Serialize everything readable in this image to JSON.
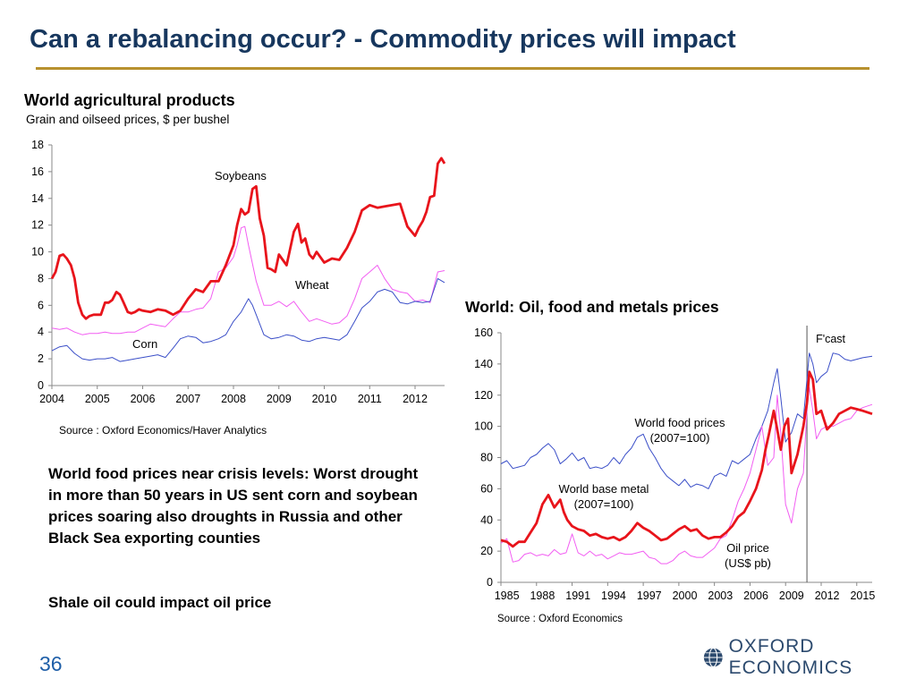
{
  "slide": {
    "title": "Can a rebalancing occur? - Commodity prices will impact",
    "page_number": "36",
    "logo_text": "OXFORD ECONOMICS",
    "paragraphs": [
      "World food prices near crisis levels: Worst drought in more than 50 years in US sent corn and soybean prices soaring also droughts in Russia and other Black Sea exporting counties",
      "Shale oil could impact oil price"
    ],
    "colors": {
      "title": "#17375e",
      "rule": "#b8912f",
      "red": "#e8141b",
      "magenta": "#f25ef2",
      "blue": "#3b4fc8"
    }
  },
  "chart_data": [
    {
      "type": "line",
      "title": "World agricultural products",
      "subtitle": "Grain and oilseed prices, $ per bushel",
      "source": "Source : Oxford Economics/Haver Analytics",
      "xlim": [
        2004,
        2012.65
      ],
      "ylim": [
        0,
        18
      ],
      "yticks": [
        0,
        2,
        4,
        6,
        8,
        10,
        12,
        14,
        16,
        18
      ],
      "xtick_labels": [
        "2004",
        "2005",
        "2006",
        "2007",
        "2008",
        "2009",
        "2010",
        "2011",
        "2012"
      ],
      "series": [
        {
          "name": "Soybeans",
          "color": "#e8141b",
          "width": 2.8,
          "x": [
            2004,
            2004.08,
            2004.17,
            2004.25,
            2004.33,
            2004.42,
            2004.5,
            2004.58,
            2004.67,
            2004.75,
            2004.83,
            2004.92,
            2005,
            2005.08,
            2005.17,
            2005.25,
            2005.33,
            2005.42,
            2005.5,
            2005.58,
            2005.67,
            2005.75,
            2005.83,
            2005.92,
            2006,
            2006.17,
            2006.33,
            2006.5,
            2006.67,
            2006.83,
            2007,
            2007.17,
            2007.33,
            2007.5,
            2007.67,
            2007.83,
            2008,
            2008.08,
            2008.17,
            2008.25,
            2008.33,
            2008.42,
            2008.5,
            2008.58,
            2008.67,
            2008.75,
            2008.83,
            2008.92,
            2009,
            2009.17,
            2009.33,
            2009.42,
            2009.5,
            2009.58,
            2009.67,
            2009.75,
            2009.83,
            2010,
            2010.17,
            2010.33,
            2010.5,
            2010.67,
            2010.83,
            2011,
            2011.17,
            2011.33,
            2011.5,
            2011.67,
            2011.83,
            2012,
            2012.08,
            2012.17,
            2012.25,
            2012.33,
            2012.42,
            2012.5,
            2012.58,
            2012.65
          ],
          "y": [
            8.0,
            8.5,
            9.7,
            9.8,
            9.5,
            9.0,
            8.0,
            6.2,
            5.3,
            5.0,
            5.2,
            5.3,
            5.3,
            5.3,
            6.2,
            6.2,
            6.4,
            7.0,
            6.8,
            6.2,
            5.5,
            5.4,
            5.5,
            5.7,
            5.6,
            5.5,
            5.7,
            5.6,
            5.3,
            5.6,
            6.5,
            7.2,
            7.0,
            7.8,
            7.8,
            9.0,
            10.5,
            12.0,
            13.2,
            12.8,
            13.0,
            14.7,
            14.9,
            12.5,
            11.2,
            8.8,
            8.7,
            8.5,
            9.8,
            9.0,
            11.5,
            12.1,
            10.7,
            11.0,
            9.8,
            9.5,
            10.0,
            9.2,
            9.5,
            9.4,
            10.3,
            11.5,
            13.1,
            13.5,
            13.3,
            13.4,
            13.5,
            13.6,
            11.9,
            11.2,
            11.8,
            12.3,
            13.0,
            14.1,
            14.2,
            16.6,
            17.0,
            16.6
          ]
        },
        {
          "name": "Wheat",
          "color": "#f25ef2",
          "width": 1,
          "x": [
            2004,
            2004.17,
            2004.33,
            2004.5,
            2004.67,
            2004.83,
            2005,
            2005.17,
            2005.33,
            2005.5,
            2005.67,
            2005.83,
            2006,
            2006.17,
            2006.33,
            2006.5,
            2006.67,
            2006.83,
            2007,
            2007.17,
            2007.33,
            2007.5,
            2007.67,
            2007.83,
            2008,
            2008.08,
            2008.17,
            2008.25,
            2008.33,
            2008.5,
            2008.67,
            2008.83,
            2009,
            2009.17,
            2009.33,
            2009.5,
            2009.67,
            2009.83,
            2010,
            2010.17,
            2010.33,
            2010.5,
            2010.67,
            2010.83,
            2011,
            2011.17,
            2011.33,
            2011.5,
            2011.67,
            2011.83,
            2012,
            2012.17,
            2012.33,
            2012.5,
            2012.65
          ],
          "y": [
            4.3,
            4.2,
            4.3,
            4.0,
            3.8,
            3.9,
            3.9,
            4.0,
            3.9,
            3.9,
            4.0,
            4.0,
            4.3,
            4.6,
            4.5,
            4.4,
            5.0,
            5.5,
            5.5,
            5.7,
            5.8,
            6.5,
            8.5,
            8.8,
            9.6,
            10.5,
            11.8,
            11.9,
            10.5,
            7.8,
            6.0,
            6.0,
            6.3,
            5.9,
            6.3,
            5.5,
            4.8,
            5.0,
            4.8,
            4.6,
            4.7,
            5.2,
            6.5,
            8.0,
            8.5,
            9.0,
            8.0,
            7.2,
            7.0,
            6.9,
            6.3,
            6.4,
            6.2,
            8.5,
            8.6
          ]
        },
        {
          "name": "Corn",
          "color": "#3b4fc8",
          "width": 1,
          "x": [
            2004,
            2004.17,
            2004.33,
            2004.5,
            2004.67,
            2004.83,
            2005,
            2005.17,
            2005.33,
            2005.5,
            2005.67,
            2005.83,
            2006,
            2006.17,
            2006.33,
            2006.5,
            2006.67,
            2006.83,
            2007,
            2007.17,
            2007.33,
            2007.5,
            2007.67,
            2007.83,
            2008,
            2008.17,
            2008.33,
            2008.42,
            2008.5,
            2008.67,
            2008.83,
            2009,
            2009.17,
            2009.33,
            2009.5,
            2009.67,
            2009.83,
            2010,
            2010.17,
            2010.33,
            2010.5,
            2010.67,
            2010.83,
            2011,
            2011.17,
            2011.33,
            2011.5,
            2011.67,
            2011.83,
            2012,
            2012.17,
            2012.33,
            2012.5,
            2012.65
          ],
          "y": [
            2.6,
            2.9,
            3.0,
            2.4,
            2.0,
            1.9,
            2.0,
            2.0,
            2.1,
            1.8,
            1.9,
            2.0,
            2.1,
            2.2,
            2.3,
            2.1,
            2.8,
            3.5,
            3.7,
            3.6,
            3.2,
            3.3,
            3.5,
            3.8,
            4.8,
            5.5,
            6.5,
            6.0,
            5.3,
            3.8,
            3.5,
            3.6,
            3.8,
            3.7,
            3.4,
            3.3,
            3.5,
            3.6,
            3.5,
            3.4,
            3.8,
            4.8,
            5.8,
            6.3,
            7.0,
            7.2,
            7.0,
            6.2,
            6.1,
            6.3,
            6.2,
            6.3,
            8.0,
            7.7
          ]
        }
      ],
      "annotations": [
        "Soybeans",
        "Wheat",
        "Corn"
      ]
    },
    {
      "type": "line",
      "title": "World: Oil, food and metals prices",
      "source": "Source : Oxford Economics",
      "xlim": [
        1985,
        2016.3
      ],
      "ylim": [
        0,
        160
      ],
      "yticks": [
        0,
        20,
        40,
        60,
        80,
        100,
        120,
        140,
        160
      ],
      "xtick_labels": [
        "1985",
        "1988",
        "1991",
        "1994",
        "1997",
        "2000",
        "2003",
        "2006",
        "2009",
        "2012",
        "2015"
      ],
      "forecast_x": 2010.8,
      "forecast_label": "F'cast",
      "series": [
        {
          "name": "World food prices (2007=100)",
          "color": "#3b4fc8",
          "width": 1,
          "x": [
            1985,
            1985.5,
            1986,
            1986.5,
            1987,
            1987.5,
            1988,
            1988.5,
            1989,
            1989.5,
            1990,
            1990.5,
            1991,
            1991.5,
            1992,
            1992.5,
            1993,
            1993.5,
            1994,
            1994.5,
            1995,
            1995.5,
            1996,
            1996.5,
            1997,
            1997.5,
            1998,
            1998.5,
            1999,
            1999.5,
            2000,
            2000.5,
            2001,
            2001.5,
            2002,
            2002.5,
            2003,
            2003.5,
            2004,
            2004.5,
            2005,
            2005.5,
            2006,
            2006.5,
            2007,
            2007.5,
            2008,
            2008.3,
            2008.6,
            2009,
            2009.5,
            2010,
            2010.5,
            2010.8,
            2011,
            2011.3,
            2011.6,
            2012,
            2012.5,
            2013,
            2013.5,
            2014,
            2014.5,
            2015,
            2015.5,
            2016.3
          ],
          "y": [
            76,
            78,
            73,
            74,
            75,
            80,
            82,
            86,
            89,
            85,
            76,
            79,
            83,
            78,
            80,
            73,
            74,
            73,
            75,
            80,
            76,
            82,
            86,
            93,
            95,
            86,
            80,
            73,
            68,
            65,
            62,
            66,
            61,
            63,
            62,
            60,
            68,
            70,
            68,
            78,
            76,
            79,
            82,
            92,
            100,
            110,
            128,
            137,
            118,
            90,
            96,
            108,
            105,
            130,
            147,
            140,
            128,
            132,
            135,
            147,
            146,
            143,
            142,
            143,
            144,
            145
          ]
        },
        {
          "name": "World base metal (2007=100)",
          "color": "#f25ef2",
          "width": 1,
          "x": [
            1985,
            1985.5,
            1986,
            1986.5,
            1987,
            1987.5,
            1988,
            1988.5,
            1989,
            1989.5,
            1990,
            1990.5,
            1991,
            1991.5,
            1992,
            1992.5,
            1993,
            1993.5,
            1994,
            1994.5,
            1995,
            1995.5,
            1996,
            1996.5,
            1997,
            1997.5,
            1998,
            1998.5,
            1999,
            1999.5,
            2000,
            2000.5,
            2001,
            2001.5,
            2002,
            2002.5,
            2003,
            2003.5,
            2004,
            2004.5,
            2005,
            2005.5,
            2006,
            2006.5,
            2007,
            2007.5,
            2008,
            2008.3,
            2008.6,
            2009,
            2009.5,
            2010,
            2010.5,
            2010.8,
            2011,
            2011.3,
            2011.6,
            2012,
            2012.5,
            2013,
            2013.5,
            2014,
            2014.5,
            2015,
            2015.5,
            2016.3
          ],
          "y": [
            25,
            28,
            13,
            14,
            18,
            19,
            17,
            18,
            17,
            21,
            18,
            19,
            31,
            19,
            17,
            20,
            17,
            18,
            15,
            17,
            19,
            18,
            18,
            19,
            20,
            16,
            15,
            12,
            12,
            14,
            18,
            20,
            17,
            16,
            16,
            19,
            22,
            28,
            30,
            40,
            52,
            60,
            70,
            85,
            100,
            75,
            80,
            120,
            95,
            50,
            38,
            60,
            70,
            110,
            125,
            110,
            92,
            98,
            100,
            100,
            102,
            104,
            105,
            110,
            112,
            114
          ]
        },
        {
          "name": "Oil price (US$ pb)",
          "color": "#e8141b",
          "width": 2.8,
          "x": [
            1985,
            1985.5,
            1986,
            1986.5,
            1987,
            1987.5,
            1988,
            1988.5,
            1989,
            1989.5,
            1990,
            1990.3,
            1990.6,
            1991,
            1991.5,
            1992,
            1992.5,
            1993,
            1993.5,
            1994,
            1994.5,
            1995,
            1995.5,
            1996,
            1996.5,
            1997,
            1997.5,
            1998,
            1998.5,
            1999,
            1999.5,
            2000,
            2000.5,
            2001,
            2001.5,
            2002,
            2002.5,
            2003,
            2003.5,
            2004,
            2004.5,
            2005,
            2005.5,
            2006,
            2006.5,
            2007,
            2007.3,
            2007.6,
            2008,
            2008.3,
            2008.6,
            2008.9,
            2009.2,
            2009.5,
            2010,
            2010.5,
            2010.8,
            2011,
            2011.3,
            2011.6,
            2012,
            2012.5,
            2013,
            2013.5,
            2014,
            2014.5,
            2015,
            2015.5,
            2016.3
          ],
          "y": [
            27,
            26,
            23,
            26,
            26,
            32,
            38,
            50,
            56,
            48,
            53,
            45,
            40,
            36,
            34,
            33,
            30,
            31,
            29,
            28,
            29,
            27,
            29,
            33,
            38,
            35,
            33,
            30,
            27,
            28,
            31,
            34,
            36,
            33,
            34,
            30,
            28,
            29,
            29,
            32,
            36,
            42,
            45,
            52,
            60,
            72,
            85,
            95,
            110,
            98,
            85,
            100,
            105,
            70,
            82,
            100,
            115,
            135,
            130,
            108,
            110,
            98,
            102,
            108,
            110,
            112,
            111,
            110,
            108
          ]
        }
      ],
      "annotations": [
        "World food prices",
        "(2007=100)",
        "World base metal",
        "(2007=100)",
        "Oil price",
        "(US$ pb)"
      ]
    }
  ]
}
